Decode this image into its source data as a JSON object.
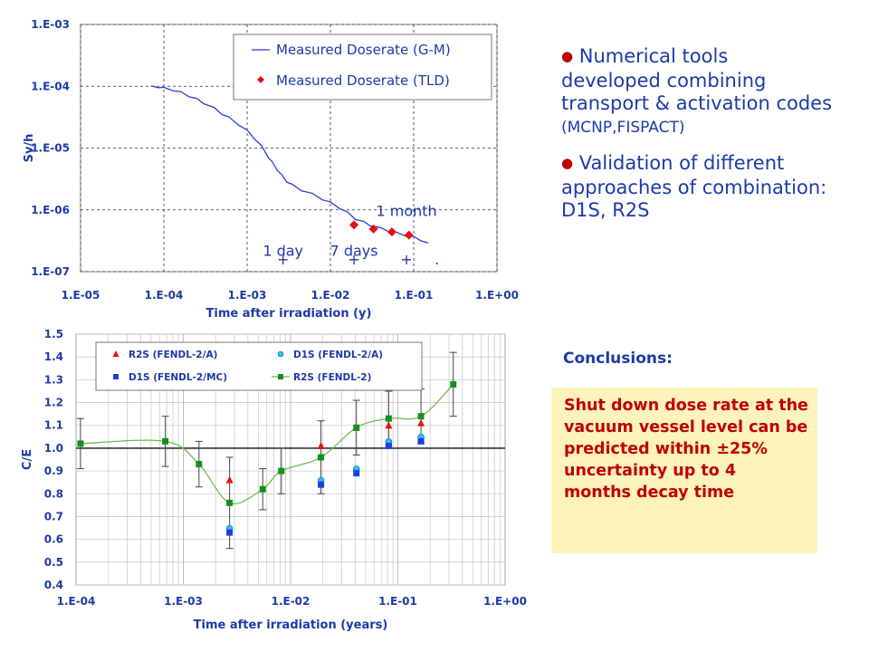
{
  "chart_data": [
    {
      "type": "line",
      "xscale": "log",
      "yscale": "log",
      "xlabel": "Time after irradiation (y)",
      "ylabel": "Sv/h",
      "xlim": [
        1e-05,
        1
      ],
      "ylim": [
        1e-07,
        0.001
      ],
      "x_tick_labels": [
        "1.E-05",
        "1.E-04",
        "1.E-03",
        "1.E-02",
        "1.E-01",
        "1.E+00"
      ],
      "y_tick_labels": [
        "1.E-07",
        "1.E-06",
        "1.E-05",
        "1.E-04",
        "1.E-03"
      ],
      "grid": true,
      "legend_position": "top-right",
      "series": [
        {
          "name": "Measured Doserate (G-M)",
          "color": "#2b3fd6",
          "marker": "line",
          "x": [
            7e-05,
            8.5e-05,
            0.0001,
            0.00013,
            0.00016,
            0.0002,
            0.00025,
            0.0003,
            0.0004,
            0.0005,
            0.0006,
            0.0008,
            0.001,
            0.0012,
            0.0015,
            0.0018,
            0.002,
            0.0023,
            0.0026,
            0.003,
            0.0035,
            0.0045,
            0.006,
            0.008,
            0.01,
            0.013,
            0.016,
            0.02,
            0.025,
            0.03,
            0.04,
            0.05,
            0.06,
            0.08,
            0.1,
            0.12,
            0.15
          ],
          "y": [
            0.000102,
            9.8e-05,
            9.3e-05,
            8.7e-05,
            7.9e-05,
            7e-05,
            6.1e-05,
            5.4e-05,
            4.4e-05,
            3.6e-05,
            3.1e-05,
            2.4e-05,
            1.9e-05,
            1.5e-05,
            1.05e-05,
            7.2e-06,
            5.8e-06,
            4.5e-06,
            3.6e-06,
            2.9e-06,
            2.5e-06,
            2.1e-06,
            1.8e-06,
            1.5e-06,
            1.3e-06,
            1.08e-06,
            9e-07,
            7.2e-07,
            6.3e-07,
            5.7e-07,
            5e-07,
            4.6e-07,
            4.3e-07,
            3.9e-07,
            3.6e-07,
            3.3e-07,
            2.9e-07
          ]
        },
        {
          "name": "Measured Doserate (TLD)",
          "color": "#e81010",
          "marker": "diamond",
          "x": [
            0.0192,
            0.0329,
            0.0548,
            0.0877
          ],
          "y": [
            5.7e-07,
            4.9e-07,
            4.4e-07,
            3.9e-07
          ]
        }
      ],
      "annotations": [
        {
          "text": "1 day",
          "x": 0.0027,
          "y": 1.8e-07
        },
        {
          "text": "7 days",
          "x": 0.0192,
          "y": 1.8e-07
        },
        {
          "text": "1 month",
          "x": 0.082,
          "y": 8e-07
        }
      ],
      "markers": [
        {
          "symbol": "+",
          "x": 0.0027
        },
        {
          "symbol": "+",
          "x": 0.0192
        },
        {
          "symbol": "+",
          "x": 0.082
        },
        {
          "symbol": ".",
          "x": 0.19
        }
      ]
    },
    {
      "type": "scatter",
      "xscale": "log",
      "xlabel": "Time after irradiation (years)",
      "ylabel": "C/E",
      "xlim": [
        0.0001,
        1
      ],
      "ylim": [
        0.4,
        1.5
      ],
      "x_tick_labels": [
        "1.E-04",
        "1.E-03",
        "1.E-02",
        "1.E-01",
        "1.E+00"
      ],
      "y_tick_labels": [
        "0.4",
        "0.5",
        "0.6",
        "0.7",
        "0.8",
        "0.9",
        "1.0",
        "1.1",
        "1.2",
        "1.3",
        "1.4",
        "1.5"
      ],
      "grid": true,
      "reference_line": 1.0,
      "legend_position": "top",
      "series": [
        {
          "name": "R2S (FENDL-2/A)",
          "color": "#e81010",
          "marker": "triangle",
          "x": [
            0.0027,
            0.0192,
            0.0411,
            0.0822,
            0.1644
          ],
          "y": [
            0.86,
            1.01,
            1.09,
            1.1,
            1.11
          ]
        },
        {
          "name": "D1S  (FENDL-2/A)",
          "color": "#22c6f0",
          "marker": "circle",
          "x": [
            0.0027,
            0.0192,
            0.0411,
            0.0822,
            0.1644
          ],
          "y": [
            0.64,
            0.85,
            0.9,
            1.02,
            1.04
          ]
        },
        {
          "name": "D1S (FENDL-2/MC)",
          "color": "#1f3fd8",
          "marker": "square",
          "x": [
            0.0027,
            0.0192,
            0.0411,
            0.0822,
            0.1644
          ],
          "y": [
            0.63,
            0.84,
            0.89,
            1.01,
            1.03
          ]
        },
        {
          "name": "R2S (FENDL-2)",
          "color": "#14901e",
          "marker": "square",
          "line": true,
          "x": [
            0.00011,
            0.00068,
            0.0014,
            0.0027,
            0.0055,
            0.0082,
            0.0192,
            0.0411,
            0.0822,
            0.1644,
            0.3288
          ],
          "y": [
            1.02,
            1.03,
            0.93,
            0.76,
            0.82,
            0.9,
            0.96,
            1.09,
            1.13,
            1.14,
            1.28
          ],
          "err": [
            0.11,
            0.11,
            0.1,
            0.2,
            0.09,
            0.1,
            0.16,
            0.12,
            0.12,
            0.12,
            0.14
          ]
        }
      ]
    }
  ],
  "bullets": [
    {
      "dot": "●",
      "text": " Numerical tools developed combining transport & activation codes ",
      "small": "(MCNP,FISPACT)"
    },
    {
      "dot": "●",
      "text": " Validation of different approaches of combination: D1S, R2S",
      "small": ""
    }
  ],
  "conclusions": {
    "title": "Conclusions:",
    "text": "Shut down dose rate at the vacuum vessel level can be predicted within ±25% uncertainty up to 4 months decay time"
  }
}
